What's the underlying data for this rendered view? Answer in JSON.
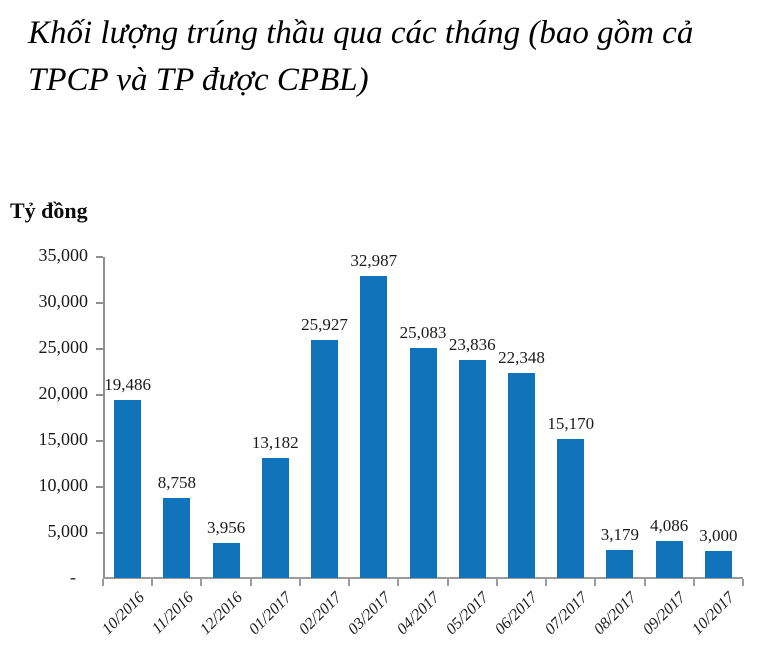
{
  "title": "Khối lượng trúng thầu qua các tháng (bao gồm cả TPCP và TP được CPBL)",
  "chart_data": {
    "type": "bar",
    "title": "Khối lượng trúng thầu qua các tháng (bao gồm cả TPCP và TP được CPBL)",
    "ylabel": "Tỷ đồng",
    "xlabel": "",
    "categories": [
      "10/2016",
      "11/2016",
      "12/2016",
      "01/2017",
      "02/2017",
      "03/2017",
      "04/2017",
      "05/2017",
      "06/2017",
      "07/2017",
      "08/2017",
      "09/2017",
      "10/2017"
    ],
    "values": [
      19486,
      8758,
      3956,
      13182,
      25927,
      32987,
      25083,
      23836,
      22348,
      15170,
      3179,
      4086,
      3000
    ],
    "value_labels": [
      "19,486",
      "8,758",
      "3,956",
      "13,182",
      "25,927",
      "32,987",
      "25,083",
      "23,836",
      "22,348",
      "15,170",
      "3,179",
      "4,086",
      "3,000"
    ],
    "y_tick_labels": [
      "35,000",
      "30,000",
      "25,000",
      "20,000",
      "15,000",
      "10,000",
      "5,000",
      "-"
    ],
    "y_tick_values": [
      35000,
      30000,
      25000,
      20000,
      15000,
      10000,
      5000,
      0
    ],
    "ylim": [
      0,
      35000
    ],
    "grid": false,
    "legend": false,
    "bar_color": "#1173b9",
    "axis_color": "#8f8f8f",
    "label_color": "#1a1a1a"
  }
}
